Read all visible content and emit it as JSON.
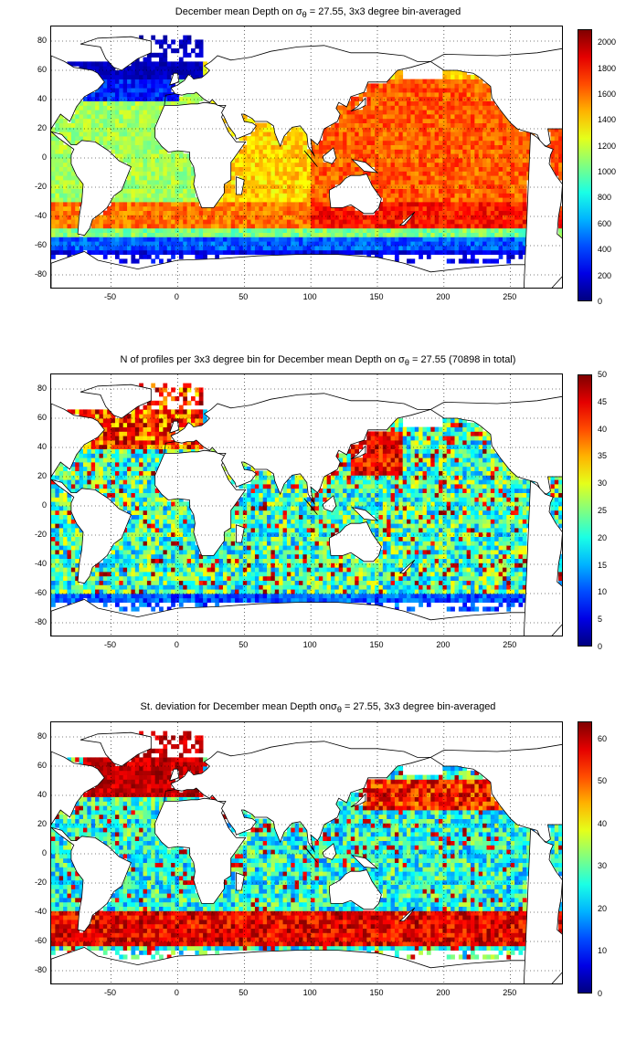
{
  "panels": [
    {
      "title_main": "December mean Depth on σ",
      "title_sub": "θ",
      "title_rest": " = 27.55, 3x3 degree bin-averaged",
      "field": "depth",
      "colorbar": {
        "min": 0,
        "max": 2100,
        "ticks": [
          "2000",
          "1800",
          "1600",
          "1400",
          "1200",
          "1000",
          "800",
          "600",
          "400",
          "200",
          "0"
        ]
      }
    },
    {
      "title_main": "N of profiles per 3x3 degree bin for December mean Depth on σ",
      "title_sub": "θ",
      "title_rest": " = 27.55 (70898 in total)",
      "field": "count",
      "colorbar": {
        "min": 0,
        "max": 50,
        "ticks": [
          "50",
          "45",
          "40",
          "35",
          "30",
          "25",
          "20",
          "15",
          "10",
          "5",
          "0"
        ]
      }
    },
    {
      "title_main": "St. deviation for December mean Depth onσ",
      "title_sub": "θ",
      "title_rest": " = 27.55, 3x3 degree bin-averaged",
      "field": "std",
      "colorbar": {
        "min": 0,
        "max": 64,
        "ticks": [
          "60",
          "50",
          "40",
          "30",
          "20",
          "10",
          "0"
        ]
      }
    }
  ],
  "axes": {
    "x_ticks": [
      "-50",
      "0",
      "50",
      "100",
      "150",
      "200",
      "250"
    ],
    "y_ticks": [
      "80",
      "60",
      "40",
      "20",
      "0",
      "-20",
      "-40",
      "-60",
      "-80"
    ],
    "xlim": [
      -95,
      290
    ],
    "ylim": [
      -90,
      90
    ]
  },
  "colormap": "jet",
  "grid": "dotted",
  "land_color": "#ffffff"
}
